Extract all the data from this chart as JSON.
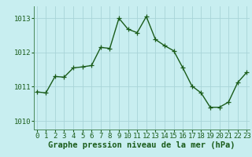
{
  "x": [
    0,
    1,
    2,
    3,
    4,
    5,
    6,
    7,
    8,
    9,
    10,
    11,
    12,
    13,
    14,
    15,
    16,
    17,
    18,
    19,
    20,
    21,
    22,
    23
  ],
  "y": [
    1010.85,
    1010.82,
    1011.3,
    1011.28,
    1011.55,
    1011.58,
    1011.62,
    1012.15,
    1012.12,
    1013.0,
    1012.68,
    1012.58,
    1013.05,
    1012.38,
    1012.2,
    1012.05,
    1011.55,
    1011.02,
    1010.82,
    1010.4,
    1010.4,
    1010.55,
    1011.12,
    1011.42
  ],
  "line_color": "#1a5c1a",
  "marker": "+",
  "markersize": 4,
  "linewidth": 1.0,
  "background_color": "#c8eef0",
  "grid_color": "#a8d4d8",
  "ylabel_ticks": [
    1010,
    1011,
    1012,
    1013
  ],
  "xlabel_ticks": [
    0,
    1,
    2,
    3,
    4,
    5,
    6,
    7,
    8,
    9,
    10,
    11,
    12,
    13,
    14,
    15,
    16,
    17,
    18,
    19,
    20,
    21,
    22,
    23
  ],
  "ylim": [
    1009.75,
    1013.35
  ],
  "xlim": [
    -0.3,
    23.3
  ],
  "xlabel": "Graphe pression niveau de la mer (hPa)",
  "xlabel_fontsize": 7.5,
  "tick_fontsize": 6.5,
  "tick_color": "#1a5c1a",
  "axis_color": "#4a8a5a"
}
